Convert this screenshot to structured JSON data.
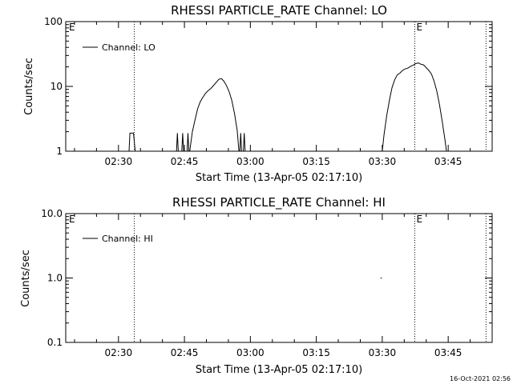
{
  "chart_data": [
    {
      "type": "line",
      "title": "RHESSI PARTICLE_RATE Channel: LO",
      "xlabel": "Start Time (13-Apr-05 02:17:10)",
      "ylabel": "Counts/sec",
      "yscale": "log",
      "ylim": [
        1,
        100
      ],
      "xlim_minutes": [
        -12,
        85
      ],
      "x_tick_labels": [
        "02:30",
        "02:45",
        "03:00",
        "03:15",
        "03:30",
        "03:45"
      ],
      "x_tick_minutes": [
        0,
        15,
        30,
        45,
        60,
        75
      ],
      "y_tick_labels": [
        "1",
        "10",
        "100"
      ],
      "y_tick_values": [
        1,
        10,
        100
      ],
      "legend": {
        "position": "top-left",
        "label": "Channel: LO"
      },
      "markers": [
        {
          "minute": 3.6,
          "label": ""
        },
        {
          "minute": 67.4,
          "label": "E"
        },
        {
          "minute": 83.6,
          "label": ""
        }
      ],
      "corner_label": "E",
      "series": [
        {
          "name": "Channel: LO",
          "segments": [
            [
              [
                2.4,
                1
              ],
              [
                2.6,
                1.9
              ],
              [
                3.4,
                1.9
              ],
              [
                3.8,
                1
              ]
            ],
            [
              [
                13.2,
                1
              ],
              [
                13.4,
                1.9
              ],
              [
                13.6,
                1
              ]
            ],
            [
              [
                14.4,
                1
              ],
              [
                14.6,
                1.9
              ],
              [
                14.8,
                1
              ]
            ],
            [
              [
                15.6,
                1
              ],
              [
                15.8,
                1.9
              ],
              [
                16,
                1
              ]
            ],
            [
              [
                16.2,
                1
              ],
              [
                16.8,
                2.0
              ],
              [
                17.4,
                3.0
              ],
              [
                18,
                4.5
              ],
              [
                18.6,
                5.8
              ],
              [
                19.2,
                6.8
              ],
              [
                19.8,
                7.8
              ],
              [
                20.4,
                8.6
              ],
              [
                21,
                9.3
              ],
              [
                21.6,
                10.3
              ],
              [
                22.2,
                11.5
              ],
              [
                22.8,
                12.8
              ],
              [
                23.4,
                13.2
              ],
              [
                24,
                12
              ],
              [
                24.6,
                10.2
              ],
              [
                25.2,
                8.2
              ],
              [
                25.8,
                6
              ],
              [
                26.4,
                3.8
              ],
              [
                27,
                2.1
              ],
              [
                27.4,
                1
              ]
            ],
            [
              [
                27.6,
                1
              ],
              [
                27.8,
                1.9
              ],
              [
                28,
                1
              ]
            ],
            [
              [
                28.4,
                1
              ],
              [
                28.6,
                1.9
              ],
              [
                28.8,
                1
              ]
            ],
            [
              [
                60,
                1
              ],
              [
                60.4,
                1.8
              ],
              [
                61,
                3.5
              ],
              [
                61.6,
                6
              ],
              [
                62.2,
                9.5
              ],
              [
                62.8,
                12.5
              ],
              [
                63.4,
                15
              ],
              [
                64,
                16
              ],
              [
                64.6,
                17.6
              ],
              [
                65.2,
                18.6
              ],
              [
                65.8,
                19.1
              ],
              [
                66.4,
                20.3
              ],
              [
                67,
                21.2
              ],
              [
                67.6,
                22.5
              ],
              [
                68.2,
                23
              ],
              [
                68.8,
                22
              ],
              [
                69.4,
                21.5
              ],
              [
                70,
                19.5
              ],
              [
                70.6,
                17.6
              ],
              [
                71.2,
                15.5
              ],
              [
                71.8,
                12
              ],
              [
                72.4,
                8.5
              ],
              [
                73,
                5.3
              ],
              [
                73.6,
                3
              ],
              [
                74.2,
                1.6
              ],
              [
                74.6,
                1
              ]
            ]
          ]
        }
      ]
    },
    {
      "type": "line",
      "title": "RHESSI PARTICLE_RATE Channel: HI",
      "xlabel": "Start Time (13-Apr-05 02:17:10)",
      "ylabel": "Counts/sec",
      "yscale": "log",
      "ylim": [
        0.1,
        10
      ],
      "xlim_minutes": [
        -12,
        85
      ],
      "x_tick_labels": [
        "02:30",
        "02:45",
        "03:00",
        "03:15",
        "03:30",
        "03:45"
      ],
      "x_tick_minutes": [
        0,
        15,
        30,
        45,
        60,
        75
      ],
      "y_tick_labels": [
        "0.1",
        "1.0",
        "10.0"
      ],
      "y_tick_values": [
        0.1,
        1,
        10
      ],
      "legend": {
        "position": "top-left",
        "label": "Channel: HI"
      },
      "markers": [
        {
          "minute": 3.6,
          "label": ""
        },
        {
          "minute": 67.4,
          "label": "E"
        },
        {
          "minute": 83.6,
          "label": ""
        }
      ],
      "corner_label": "E",
      "series": [
        {
          "name": "Channel: HI",
          "segments": [
            [
              [
                59.6,
                1.0
              ],
              [
                59.9,
                1.0
              ]
            ]
          ]
        }
      ]
    }
  ],
  "footer": {
    "timestamp": "16-Oct-2021 02:56"
  }
}
